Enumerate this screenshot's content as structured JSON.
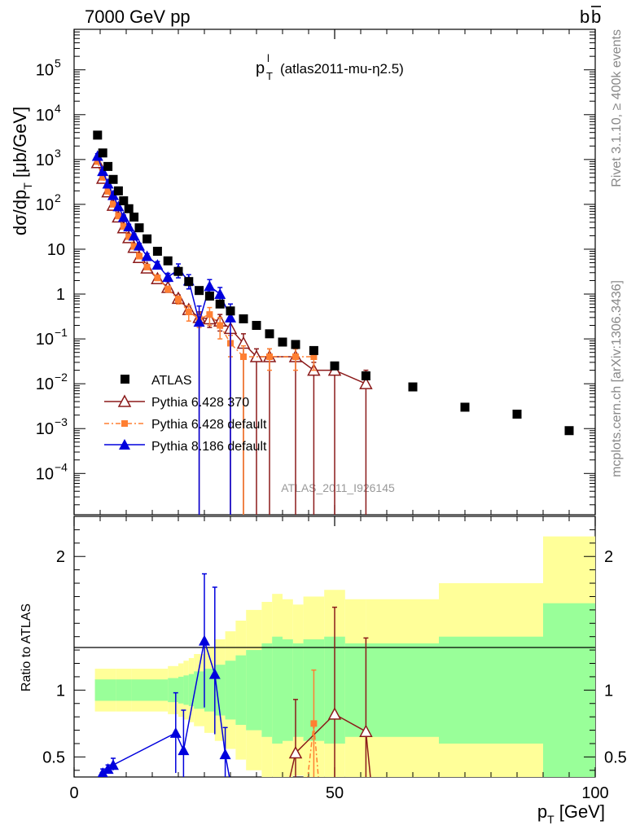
{
  "header": {
    "energy_label": "7000 GeV pp",
    "process_label": "b",
    "process_bar": "b"
  },
  "main_plot": {
    "title_main": "p",
    "title_sup": "l",
    "title_sub": "T",
    "title_suffix": "(atlas2011-mu-η2.5)",
    "ylabel_a": "dσ/dp",
    "ylabel_sub": "T",
    "ylabel_b": " [μb/GeV]",
    "analysis_label": "ATLAS_2011_I926145"
  },
  "side_labels": {
    "rivet": "Rivet 3.1.10, ≥ 400k events",
    "mcplots": "mcplots.cern.ch [arXiv:1306.3436]"
  },
  "ratio_plot": {
    "ylabel": "Ratio to ATLAS",
    "ticks": [
      {
        "value": 0.5,
        "label": "0.5"
      },
      {
        "value": 1,
        "label": "1"
      },
      {
        "value": 2,
        "label": "2"
      }
    ]
  },
  "axes": {
    "xlabel_a": "p",
    "xlabel_sub": "T",
    "xlabel_b": " [GeV]",
    "x_ticks": [
      {
        "value": 0,
        "label": "0"
      },
      {
        "value": 50,
        "label": "50"
      },
      {
        "value": 100,
        "label": "100"
      }
    ],
    "y_ticks": [
      {
        "exp": -4,
        "label": "10",
        "sup": "−4"
      },
      {
        "exp": -3,
        "label": "10",
        "sup": "−3"
      },
      {
        "exp": -2,
        "label": "10",
        "sup": "−2"
      },
      {
        "exp": -1,
        "label": "10",
        "sup": "−1"
      },
      {
        "exp": 0,
        "label": "1",
        "sup": ""
      },
      {
        "exp": 1,
        "label": "10",
        "sup": ""
      },
      {
        "exp": 2,
        "label": "10",
        "sup": "2"
      },
      {
        "exp": 3,
        "label": "10",
        "sup": "3"
      },
      {
        "exp": 4,
        "label": "10",
        "sup": "4"
      },
      {
        "exp": 5,
        "label": "10",
        "sup": "5"
      }
    ]
  },
  "legend": [
    {
      "label": "ATLAS"
    },
    {
      "label": "Pythia 6.428 370"
    },
    {
      "label": "Pythia 6.428 default"
    },
    {
      "label": "Pythia 8.186 default"
    }
  ],
  "chart_data": {
    "type": "scatter",
    "xlim": [
      0,
      100
    ],
    "ylim": [
      1.2e-05,
      800000.0
    ],
    "yscale": "log",
    "ratio_ylim": [
      0.35,
      2.3
    ],
    "legend_position": "lower-left",
    "colors": {
      "data": "#000000",
      "p6_370": "#8b1a1a",
      "p6_default": "#ff7f32",
      "p8_default": "#0000dd",
      "band_inner": "#99ff99",
      "band_outer": "#ffff99"
    },
    "data_points": {
      "x": [
        4.5,
        5.5,
        6.5,
        7.5,
        8.5,
        9.5,
        10.5,
        11.5,
        12.5,
        14,
        16,
        18,
        20,
        22,
        24,
        26,
        28,
        30,
        32.5,
        35,
        37.5,
        40,
        42.5,
        46,
        50,
        56,
        65,
        75,
        85,
        95
      ],
      "y": [
        3500,
        1400,
        700,
        360,
        200,
        120,
        80,
        52,
        30,
        17,
        9,
        5.5,
        3.2,
        1.9,
        1.2,
        0.9,
        0.6,
        0.42,
        0.28,
        0.2,
        0.13,
        0.085,
        0.075,
        0.055,
        0.025,
        0.015,
        0.0085,
        0.003,
        0.0021,
        0.0009
      ]
    },
    "band": {
      "edges": [
        4,
        8,
        11,
        15,
        18,
        20,
        21,
        22,
        23,
        25,
        27,
        29,
        31,
        33,
        36,
        38,
        40,
        42,
        44,
        48,
        52,
        56,
        60,
        70,
        80,
        90,
        100
      ],
      "inner": [
        0.08,
        0.08,
        0.08,
        0.08,
        0.09,
        0.1,
        0.11,
        0.12,
        0.14,
        0.16,
        0.19,
        0.22,
        0.26,
        0.3,
        0.35,
        0.4,
        0.38,
        0.35,
        0.38,
        0.4,
        0.35,
        0.35,
        0.35,
        0.4,
        0.4,
        0.65
      ],
      "outer": [
        0.16,
        0.16,
        0.16,
        0.16,
        0.18,
        0.2,
        0.22,
        0.24,
        0.27,
        0.32,
        0.38,
        0.44,
        0.52,
        0.6,
        0.66,
        0.72,
        0.68,
        0.64,
        0.7,
        0.75,
        0.68,
        0.68,
        0.68,
        0.8,
        0.8,
        1.15
      ]
    },
    "series": [
      {
        "name": "Pythia 6.428 370",
        "key": "p6_370",
        "marker": "triangle-open",
        "x": [
          4.5,
          5.5,
          6.5,
          7.5,
          8.5,
          9.5,
          10.5,
          11.5,
          12.5,
          14,
          16,
          18,
          20,
          22,
          24,
          26,
          28,
          30,
          32.5,
          35,
          37.5,
          42.5,
          46,
          50,
          56
        ],
        "y": [
          850,
          380,
          190,
          95,
          52,
          30,
          18,
          11,
          6.5,
          3.8,
          2.2,
          1.4,
          0.8,
          0.45,
          0.3,
          0.28,
          0.25,
          0.17,
          0.08,
          0.04,
          0.04,
          0.04,
          0.02,
          0.02,
          0.01
        ],
        "err_lo": [
          100,
          40,
          20,
          10,
          6,
          3,
          2,
          1.2,
          0.8,
          0.4,
          0.3,
          0.2,
          0.15,
          0.1,
          0.3,
          0.1,
          0.1,
          0.17,
          0.08,
          0.04,
          0.04,
          0.04,
          0.02,
          0.02,
          0.01
        ],
        "err_hi": [
          100,
          40,
          20,
          10,
          6,
          3,
          2,
          1.2,
          0.8,
          0.4,
          0.3,
          0.2,
          0.15,
          0.1,
          0.1,
          0.1,
          0.1,
          0.1,
          0.05,
          0.02,
          0.02,
          0.02,
          0.01,
          0.01,
          0.01
        ],
        "ratio_x": [
          42.5,
          50,
          56
        ],
        "ratio_y": [
          0.53,
          0.82,
          0.69
        ],
        "ratio_err_lo": [
          0.4,
          0.6,
          0.5
        ],
        "ratio_err_hi": [
          0.4,
          0.8,
          0.7
        ]
      },
      {
        "name": "Pythia 6.428 default",
        "key": "p6_default",
        "marker": "square",
        "dashed": true,
        "x": [
          4.5,
          5.5,
          6.5,
          7.5,
          8.5,
          9.5,
          10.5,
          11.5,
          12.5,
          14,
          16,
          18,
          20,
          22,
          24,
          26,
          28,
          30,
          32.5,
          37.5,
          42.5,
          46
        ],
        "y": [
          900,
          400,
          195,
          100,
          55,
          32,
          19,
          11.5,
          7,
          4,
          2.3,
          1.3,
          0.75,
          0.4,
          0.28,
          0.35,
          0.2,
          0.08,
          0.04,
          0.04,
          0.04,
          0.04
        ],
        "err_lo": [
          100,
          40,
          20,
          10,
          6,
          3,
          2,
          1.2,
          0.8,
          0.4,
          0.3,
          0.2,
          0.15,
          0.15,
          0.1,
          0.15,
          0.1,
          0.04,
          0.04,
          0.02,
          0.02,
          0.02
        ],
        "err_hi": [
          100,
          40,
          20,
          10,
          6,
          3,
          2,
          1.2,
          0.8,
          0.4,
          0.3,
          0.2,
          0.15,
          0.15,
          0.1,
          0.15,
          0.1,
          0.04,
          0.03,
          0.02,
          0.02,
          0.02
        ],
        "ratio_x": [
          46
        ],
        "ratio_y": [
          0.75
        ],
        "ratio_err_lo": [
          0.5
        ],
        "ratio_err_hi": [
          0.4
        ]
      },
      {
        "name": "Pythia 8.186 default",
        "key": "p8_default",
        "marker": "triangle-filled",
        "x": [
          4.5,
          5.5,
          6.5,
          7.5,
          8.5,
          9.5,
          10.5,
          11.5,
          12.5,
          14,
          16,
          18,
          20,
          22,
          24,
          26,
          28,
          30
        ],
        "y": [
          1200,
          550,
          290,
          160,
          90,
          52,
          32,
          20,
          12,
          7,
          4.5,
          2.4,
          3.5,
          2,
          0.24,
          1.5,
          1,
          0.3
        ],
        "err_lo": [
          150,
          60,
          30,
          20,
          10,
          6,
          4,
          2,
          1.5,
          1,
          0.8,
          0.5,
          1.2,
          0.7,
          0.24,
          0.6,
          0.4,
          0.3
        ],
        "err_hi": [
          150,
          60,
          30,
          20,
          10,
          6,
          4,
          2,
          1.5,
          1,
          0.8,
          0.5,
          1.2,
          0.7,
          0.3,
          0.6,
          0.4,
          0.3
        ],
        "ratio_x": [
          5.5,
          6.5,
          7.5,
          19.5,
          21,
          25,
          27,
          29
        ],
        "ratio_y": [
          0.38,
          0.41,
          0.44,
          0.68,
          0.55,
          1.37,
          1.12,
          0.52
        ],
        "ratio_err_lo": [
          0.03,
          0.03,
          0.04,
          0.3,
          0.25,
          0.5,
          0.45,
          0.2
        ],
        "ratio_err_hi": [
          0.03,
          0.03,
          0.05,
          0.3,
          0.3,
          0.5,
          0.65,
          0.2
        ]
      }
    ]
  }
}
